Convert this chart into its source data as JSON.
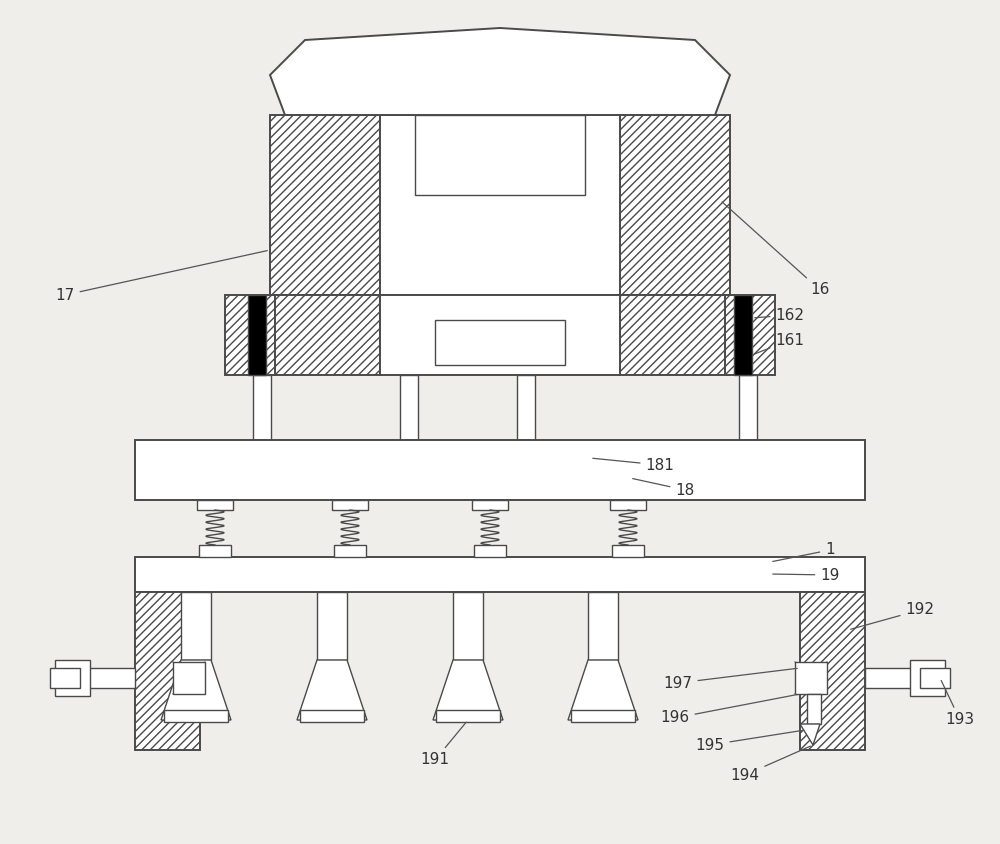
{
  "bg_color": "#f0eeeb",
  "line_color": "#4a4a4a",
  "lw_main": 1.4,
  "lw_thin": 1.0,
  "font_size": 11,
  "white": "#ffffff",
  "black": "#000000"
}
